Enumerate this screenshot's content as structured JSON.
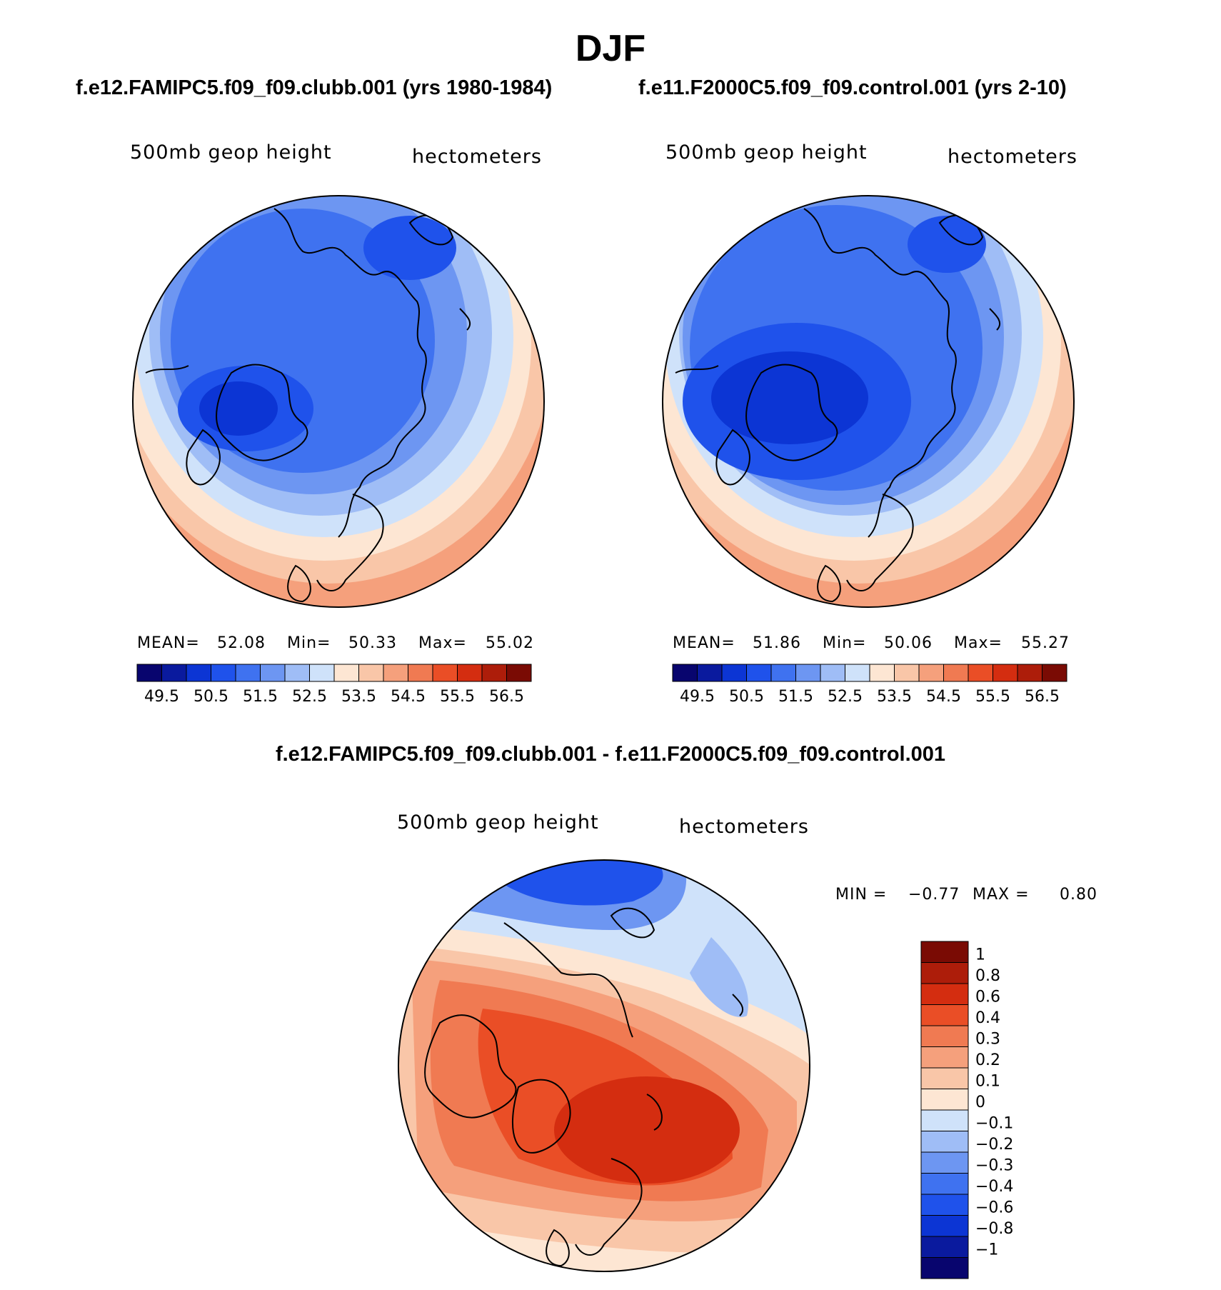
{
  "season": "DJF",
  "panels": [
    {
      "case": "f.e12.FAMIPC5.f09_f09.clubb.001 (yrs 1980-1984)",
      "variable": "500mb geop height",
      "units": "hectometers",
      "stats": {
        "mean_label": "MEAN=",
        "mean": "52.08",
        "min_label": "Min=",
        "min": "50.33",
        "max_label": "Max=",
        "max": "55.02"
      }
    },
    {
      "case": "f.e11.F2000C5.f09_f09.control.001 (yrs 2-10)",
      "variable": "500mb geop height",
      "units": "hectometers",
      "stats": {
        "mean_label": "MEAN=",
        "mean": "51.86",
        "min_label": "Min=",
        "min": "50.06",
        "max_label": "Max=",
        "max": "55.27"
      }
    }
  ],
  "difference": {
    "title": "f.e12.FAMIPC5.f09_f09.clubb.001 - f.e11.F2000C5.f09_f09.control.001",
    "variable": "500mb geop height",
    "units": "hectometers",
    "min_label": "MIN =",
    "min": "−0.77",
    "max_label": "MAX =",
    "max": "0.80"
  },
  "colors": {
    "main_scale": [
      "#08056e",
      "#0a1a9e",
      "#0c35d4",
      "#1f52eb",
      "#3f72f0",
      "#6d96f2",
      "#9fbdf6",
      "#cfe2fa",
      "#fde6d3",
      "#f9c6a8",
      "#f5a07c",
      "#f07a52",
      "#ea4e26",
      "#d42d10",
      "#ad1d0a",
      "#7a0b04"
    ],
    "diff_scale": [
      "#08056e",
      "#0a1a9e",
      "#0c35d4",
      "#1f52eb",
      "#3f72f0",
      "#6d96f2",
      "#9fbdf6",
      "#cfe2fa",
      "#fde6d3",
      "#f9c6a8",
      "#f5a07c",
      "#f07a52",
      "#ea4e26",
      "#d42d10",
      "#ad1d0a",
      "#7a0b04"
    ],
    "coast": "#000000"
  },
  "chart_data": [
    {
      "type": "map",
      "title": "500mb geop height",
      "panel": "f.e12.FAMIPC5.f09_f09.clubb.001 (yrs 1980-1984)",
      "projection": "polar-stereographic-north",
      "colorbar_levels": [
        "49.5",
        "50.5",
        "51.5",
        "52.5",
        "53.5",
        "54.5",
        "55.5",
        "56.5"
      ],
      "colorbar_levels_full": [
        49.5,
        50,
        50.5,
        51,
        51.5,
        52,
        52.5,
        53,
        53.5,
        54,
        54.5,
        55,
        55.5,
        56,
        56.5
      ],
      "mean": 52.08,
      "min": 50.33,
      "max": 55.02
    },
    {
      "type": "map",
      "title": "500mb geop height",
      "panel": "f.e11.F2000C5.f09_f09.control.001 (yrs 2-10)",
      "projection": "polar-stereographic-north",
      "colorbar_levels": [
        "49.5",
        "50.5",
        "51.5",
        "52.5",
        "53.5",
        "54.5",
        "55.5",
        "56.5"
      ],
      "colorbar_levels_full": [
        49.5,
        50,
        50.5,
        51,
        51.5,
        52,
        52.5,
        53,
        53.5,
        54,
        54.5,
        55,
        55.5,
        56,
        56.5
      ],
      "mean": 51.86,
      "min": 50.06,
      "max": 55.27
    },
    {
      "type": "map",
      "title": "500mb geop height",
      "panel": "difference",
      "projection": "polar-stereographic-north",
      "colorbar_levels": [
        "1",
        "0.8",
        "0.6",
        "0.4",
        "0.3",
        "0.2",
        "0.1",
        "0",
        "−0.1",
        "−0.2",
        "−0.3",
        "−0.4",
        "−0.6",
        "−0.8",
        "−1"
      ],
      "min": -0.77,
      "max": 0.8
    }
  ]
}
